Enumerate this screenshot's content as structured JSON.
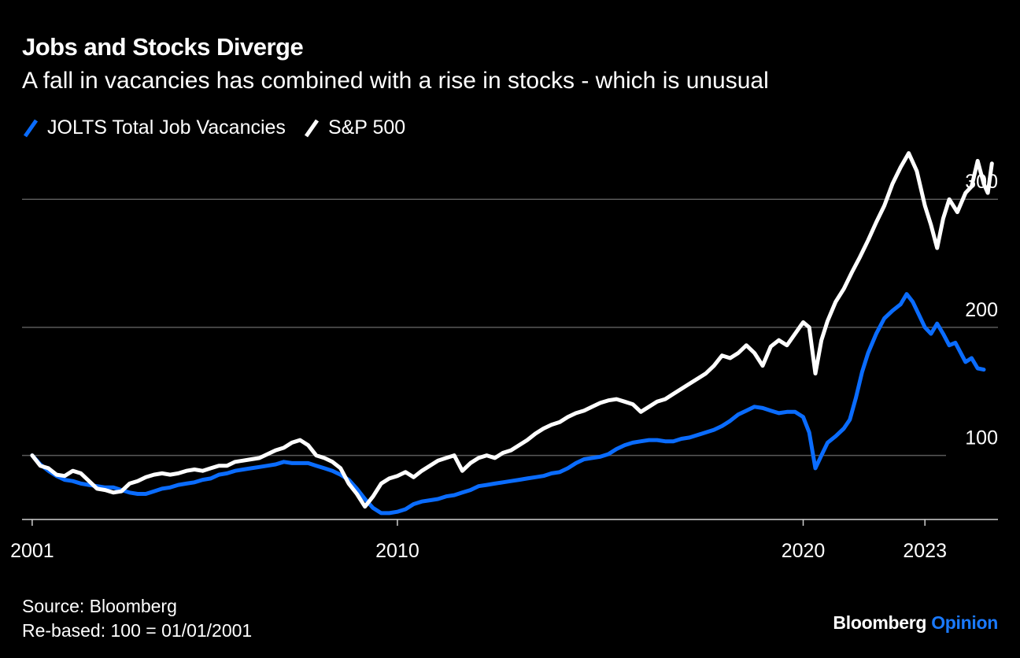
{
  "title": "Jobs and Stocks Diverge",
  "subtitle": "A fall in vacancies has combined with a rise in stocks - which is unusual",
  "source": "Source: Bloomberg",
  "note": "Re-based: 100 = 01/01/2001",
  "brand": {
    "name": "Bloomberg",
    "accent_word": "Opinion",
    "accent_color": "#1a7aff"
  },
  "colors": {
    "background": "#000000",
    "jolts": "#0a6cff",
    "sp500": "#ffffff",
    "grid": "#5a5a5a",
    "text": "#ffffff"
  },
  "chart_data": {
    "type": "line",
    "title": "Jobs and Stocks Diverge",
    "subtitle": "A fall in vacancies has combined with a rise in stocks - which is unusual",
    "xlabel": "",
    "ylabel": "",
    "x_ticks": [
      {
        "year": 2001,
        "label": "2001"
      },
      {
        "year": 2010,
        "label": "2010"
      },
      {
        "year": 2020,
        "label": "2020"
      },
      {
        "year": 2023,
        "label": "2023"
      }
    ],
    "y_ticks": [
      100,
      200,
      300
    ],
    "xlim": [
      2000.75,
      2024.8
    ],
    "ylim": [
      50,
      345
    ],
    "grid": "horizontal",
    "legend_position": "top-left",
    "series": [
      {
        "name": "JOLTS Total Job Vacancies",
        "color": "#0a6cff",
        "points": [
          [
            2001.0,
            100
          ],
          [
            2001.2,
            93
          ],
          [
            2001.4,
            88
          ],
          [
            2001.6,
            84
          ],
          [
            2001.8,
            81
          ],
          [
            2002.0,
            80
          ],
          [
            2002.2,
            78
          ],
          [
            2002.4,
            77
          ],
          [
            2002.6,
            76
          ],
          [
            2002.8,
            75
          ],
          [
            2003.0,
            75
          ],
          [
            2003.2,
            73
          ],
          [
            2003.4,
            71
          ],
          [
            2003.6,
            70
          ],
          [
            2003.8,
            70
          ],
          [
            2004.0,
            72
          ],
          [
            2004.2,
            74
          ],
          [
            2004.4,
            75
          ],
          [
            2004.6,
            77
          ],
          [
            2004.8,
            78
          ],
          [
            2005.0,
            79
          ],
          [
            2005.2,
            81
          ],
          [
            2005.4,
            82
          ],
          [
            2005.6,
            85
          ],
          [
            2005.8,
            86
          ],
          [
            2006.0,
            88
          ],
          [
            2006.2,
            89
          ],
          [
            2006.4,
            90
          ],
          [
            2006.6,
            91
          ],
          [
            2006.8,
            92
          ],
          [
            2007.0,
            93
          ],
          [
            2007.2,
            95
          ],
          [
            2007.4,
            94
          ],
          [
            2007.6,
            94
          ],
          [
            2007.8,
            94
          ],
          [
            2008.0,
            92
          ],
          [
            2008.2,
            90
          ],
          [
            2008.4,
            88
          ],
          [
            2008.6,
            85
          ],
          [
            2008.8,
            81
          ],
          [
            2009.0,
            74
          ],
          [
            2009.2,
            66
          ],
          [
            2009.4,
            59
          ],
          [
            2009.6,
            55
          ],
          [
            2009.8,
            55
          ],
          [
            2010.0,
            56
          ],
          [
            2010.2,
            58
          ],
          [
            2010.4,
            62
          ],
          [
            2010.6,
            64
          ],
          [
            2010.8,
            65
          ],
          [
            2011.0,
            66
          ],
          [
            2011.2,
            68
          ],
          [
            2011.4,
            69
          ],
          [
            2011.6,
            71
          ],
          [
            2011.8,
            73
          ],
          [
            2012.0,
            76
          ],
          [
            2012.2,
            77
          ],
          [
            2012.4,
            78
          ],
          [
            2012.6,
            79
          ],
          [
            2012.8,
            80
          ],
          [
            2013.0,
            81
          ],
          [
            2013.2,
            82
          ],
          [
            2013.4,
            83
          ],
          [
            2013.6,
            84
          ],
          [
            2013.8,
            86
          ],
          [
            2014.0,
            87
          ],
          [
            2014.2,
            90
          ],
          [
            2014.4,
            94
          ],
          [
            2014.6,
            97
          ],
          [
            2014.8,
            98
          ],
          [
            2015.0,
            99
          ],
          [
            2015.2,
            101
          ],
          [
            2015.4,
            105
          ],
          [
            2015.6,
            108
          ],
          [
            2015.8,
            110
          ],
          [
            2016.0,
            111
          ],
          [
            2016.2,
            112
          ],
          [
            2016.4,
            112
          ],
          [
            2016.6,
            111
          ],
          [
            2016.8,
            111
          ],
          [
            2017.0,
            113
          ],
          [
            2017.2,
            114
          ],
          [
            2017.4,
            116
          ],
          [
            2017.6,
            118
          ],
          [
            2017.8,
            120
          ],
          [
            2018.0,
            123
          ],
          [
            2018.2,
            127
          ],
          [
            2018.4,
            132
          ],
          [
            2018.6,
            135
          ],
          [
            2018.8,
            138
          ],
          [
            2019.0,
            137
          ],
          [
            2019.2,
            135
          ],
          [
            2019.4,
            133
          ],
          [
            2019.6,
            134
          ],
          [
            2019.8,
            134
          ],
          [
            2020.0,
            130
          ],
          [
            2020.15,
            118
          ],
          [
            2020.3,
            90
          ],
          [
            2020.45,
            100
          ],
          [
            2020.6,
            110
          ],
          [
            2020.8,
            115
          ],
          [
            2021.0,
            121
          ],
          [
            2021.15,
            128
          ],
          [
            2021.3,
            145
          ],
          [
            2021.45,
            165
          ],
          [
            2021.6,
            180
          ],
          [
            2021.8,
            195
          ],
          [
            2022.0,
            207
          ],
          [
            2022.2,
            213
          ],
          [
            2022.4,
            218
          ],
          [
            2022.55,
            226
          ],
          [
            2022.7,
            220
          ],
          [
            2022.85,
            210
          ],
          [
            2023.0,
            200
          ],
          [
            2023.15,
            195
          ],
          [
            2023.3,
            203
          ],
          [
            2023.45,
            195
          ],
          [
            2023.6,
            186
          ],
          [
            2023.75,
            188
          ],
          [
            2023.9,
            179
          ],
          [
            2024.0,
            173
          ],
          [
            2024.15,
            176
          ],
          [
            2024.3,
            168
          ],
          [
            2024.45,
            167
          ]
        ]
      },
      {
        "name": "S&P 500",
        "color": "#ffffff",
        "points": [
          [
            2001.0,
            100
          ],
          [
            2001.2,
            92
          ],
          [
            2001.4,
            90
          ],
          [
            2001.6,
            85
          ],
          [
            2001.8,
            84
          ],
          [
            2002.0,
            88
          ],
          [
            2002.2,
            86
          ],
          [
            2002.4,
            80
          ],
          [
            2002.6,
            74
          ],
          [
            2002.8,
            73
          ],
          [
            2003.0,
            71
          ],
          [
            2003.2,
            72
          ],
          [
            2003.4,
            78
          ],
          [
            2003.6,
            80
          ],
          [
            2003.8,
            83
          ],
          [
            2004.0,
            85
          ],
          [
            2004.2,
            86
          ],
          [
            2004.4,
            85
          ],
          [
            2004.6,
            86
          ],
          [
            2004.8,
            88
          ],
          [
            2005.0,
            89
          ],
          [
            2005.2,
            88
          ],
          [
            2005.4,
            90
          ],
          [
            2005.6,
            92
          ],
          [
            2005.8,
            92
          ],
          [
            2006.0,
            95
          ],
          [
            2006.2,
            96
          ],
          [
            2006.4,
            97
          ],
          [
            2006.6,
            98
          ],
          [
            2006.8,
            101
          ],
          [
            2007.0,
            104
          ],
          [
            2007.2,
            106
          ],
          [
            2007.4,
            110
          ],
          [
            2007.6,
            112
          ],
          [
            2007.8,
            108
          ],
          [
            2008.0,
            100
          ],
          [
            2008.2,
            98
          ],
          [
            2008.4,
            95
          ],
          [
            2008.6,
            90
          ],
          [
            2008.8,
            78
          ],
          [
            2009.0,
            70
          ],
          [
            2009.2,
            60
          ],
          [
            2009.4,
            68
          ],
          [
            2009.6,
            78
          ],
          [
            2009.8,
            82
          ],
          [
            2010.0,
            84
          ],
          [
            2010.2,
            87
          ],
          [
            2010.4,
            83
          ],
          [
            2010.6,
            88
          ],
          [
            2010.8,
            92
          ],
          [
            2011.0,
            96
          ],
          [
            2011.2,
            98
          ],
          [
            2011.4,
            100
          ],
          [
            2011.6,
            88
          ],
          [
            2011.8,
            94
          ],
          [
            2012.0,
            98
          ],
          [
            2012.2,
            100
          ],
          [
            2012.4,
            98
          ],
          [
            2012.6,
            102
          ],
          [
            2012.8,
            104
          ],
          [
            2013.0,
            108
          ],
          [
            2013.2,
            112
          ],
          [
            2013.4,
            117
          ],
          [
            2013.6,
            121
          ],
          [
            2013.8,
            124
          ],
          [
            2014.0,
            126
          ],
          [
            2014.2,
            130
          ],
          [
            2014.4,
            133
          ],
          [
            2014.6,
            135
          ],
          [
            2014.8,
            138
          ],
          [
            2015.0,
            141
          ],
          [
            2015.2,
            143
          ],
          [
            2015.4,
            144
          ],
          [
            2015.6,
            142
          ],
          [
            2015.8,
            140
          ],
          [
            2016.0,
            134
          ],
          [
            2016.2,
            138
          ],
          [
            2016.4,
            142
          ],
          [
            2016.6,
            144
          ],
          [
            2016.8,
            148
          ],
          [
            2017.0,
            152
          ],
          [
            2017.2,
            156
          ],
          [
            2017.4,
            160
          ],
          [
            2017.6,
            164
          ],
          [
            2017.8,
            170
          ],
          [
            2018.0,
            178
          ],
          [
            2018.2,
            176
          ],
          [
            2018.4,
            180
          ],
          [
            2018.6,
            186
          ],
          [
            2018.8,
            180
          ],
          [
            2019.0,
            170
          ],
          [
            2019.2,
            185
          ],
          [
            2019.4,
            190
          ],
          [
            2019.6,
            186
          ],
          [
            2019.8,
            195
          ],
          [
            2020.0,
            204
          ],
          [
            2020.15,
            200
          ],
          [
            2020.3,
            164
          ],
          [
            2020.45,
            190
          ],
          [
            2020.6,
            205
          ],
          [
            2020.8,
            220
          ],
          [
            2021.0,
            230
          ],
          [
            2021.2,
            243
          ],
          [
            2021.4,
            255
          ],
          [
            2021.6,
            268
          ],
          [
            2021.8,
            282
          ],
          [
            2022.0,
            295
          ],
          [
            2022.2,
            312
          ],
          [
            2022.4,
            325
          ],
          [
            2022.6,
            336
          ],
          [
            2022.8,
            322
          ],
          [
            2023.0,
            295
          ],
          [
            2023.15,
            280
          ],
          [
            2023.3,
            262
          ],
          [
            2023.45,
            285
          ],
          [
            2023.6,
            300
          ],
          [
            2023.8,
            290
          ],
          [
            2024.0,
            305
          ],
          [
            2024.15,
            310
          ],
          [
            2024.3,
            330
          ],
          [
            2024.45,
            312
          ],
          [
            2024.55,
            305
          ],
          [
            2024.65,
            328
          ]
        ]
      }
    ]
  }
}
